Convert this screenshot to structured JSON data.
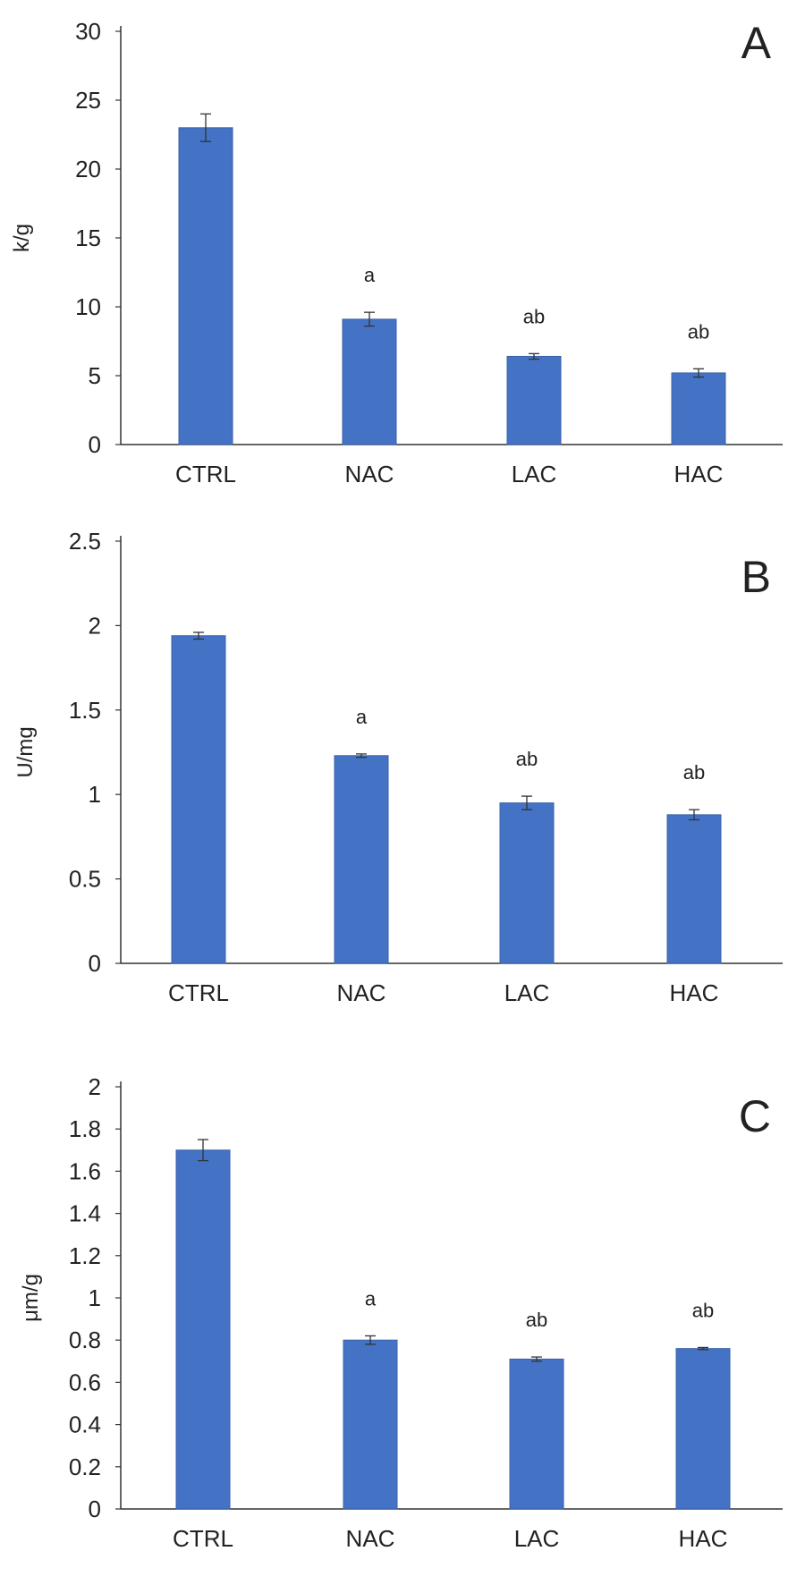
{
  "colors": {
    "bar": "#4472c4",
    "bar_edge": "#3a62a8",
    "axis": "#333333",
    "error_bar": "#333333",
    "text": "#222222"
  },
  "chart_data": [
    {
      "type": "bar",
      "panel": "A",
      "categories": [
        "CTRL",
        "NAC",
        "LAC",
        "HAC"
      ],
      "values": [
        23.0,
        9.1,
        6.4,
        5.2
      ],
      "errors": [
        1.0,
        0.5,
        0.2,
        0.3
      ],
      "significance": [
        "",
        "a",
        "ab",
        "ab"
      ],
      "ylabel": "k/g",
      "xlabel": "",
      "ylim": [
        0,
        30
      ],
      "yticks": [
        0,
        5,
        10,
        15,
        20,
        25,
        30
      ],
      "grid": false,
      "legend": "none"
    },
    {
      "type": "bar",
      "panel": "B",
      "categories": [
        "CTRL",
        "NAC",
        "LAC",
        "HAC"
      ],
      "values": [
        1.94,
        1.23,
        0.95,
        0.88
      ],
      "errors": [
        0.02,
        0.01,
        0.04,
        0.03
      ],
      "significance": [
        "",
        "a",
        "ab",
        "ab"
      ],
      "ylabel": "U/mg",
      "xlabel": "",
      "ylim": [
        0,
        2.5
      ],
      "yticks": [
        0,
        0.5,
        1,
        1.5,
        2,
        2.5
      ],
      "grid": false,
      "legend": "none"
    },
    {
      "type": "bar",
      "panel": "C",
      "categories": [
        "CTRL",
        "NAC",
        "LAC",
        "HAC"
      ],
      "values": [
        1.7,
        0.8,
        0.71,
        0.76
      ],
      "errors": [
        0.05,
        0.02,
        0.01,
        0.005
      ],
      "significance": [
        "",
        "a",
        "ab",
        "ab"
      ],
      "ylabel": "μm/g",
      "xlabel": "",
      "ylim": [
        0,
        2
      ],
      "yticks": [
        0,
        0.2,
        0.4,
        0.6,
        0.8,
        1,
        1.2,
        1.4,
        1.6,
        1.8,
        2
      ],
      "grid": false,
      "legend": "none"
    }
  ]
}
